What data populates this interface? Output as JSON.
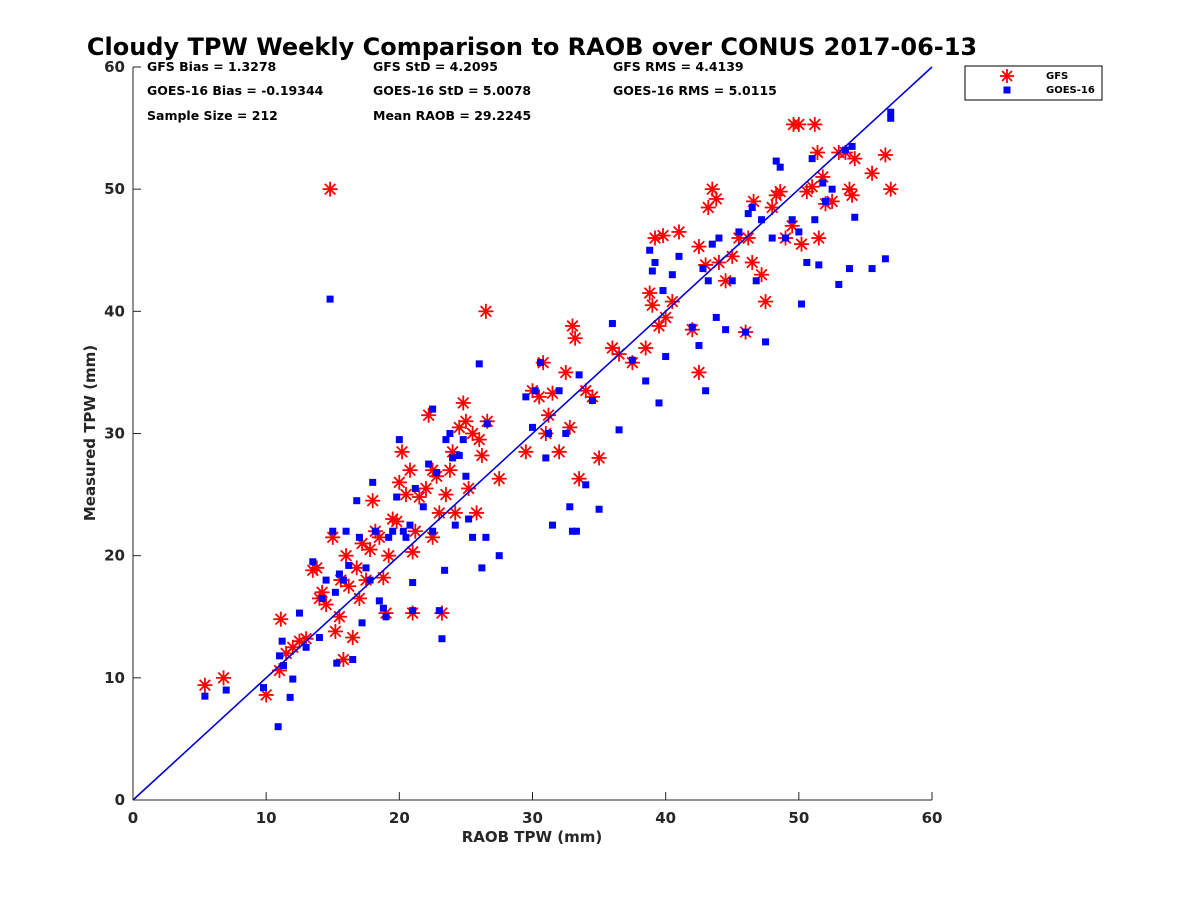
{
  "chart_data": {
    "type": "scatter",
    "title": "Cloudy TPW Weekly Comparison to RAOB over CONUS 2017-06-13",
    "xlabel": "RAOB TPW (mm)",
    "ylabel": "Measured TPW (mm)",
    "xlim": [
      0,
      60
    ],
    "ylim": [
      0,
      60
    ],
    "xticks": [
      "0",
      "10",
      "20",
      "30",
      "40",
      "50",
      "60"
    ],
    "yticks": [
      "0",
      "10",
      "20",
      "30",
      "40",
      "50",
      "60"
    ],
    "grid": false,
    "legend": "outside-top-right",
    "reference_line": {
      "from": [
        0,
        0
      ],
      "to": [
        60,
        60
      ],
      "color": "#0000dd"
    },
    "stats": {
      "gfs_bias": "GFS Bias = 1.3278",
      "gfs_std": "GFS StD = 4.2095",
      "gfs_rms": "GFS RMS = 4.4139",
      "goes_bias": "GOES-16 Bias = -0.19344",
      "goes_std": "GOES-16 StD = 5.0078",
      "goes_rms": "GOES-16 RMS = 5.0115",
      "sample_size": "Sample Size = 212",
      "mean_raob": "Mean RAOB = 29.2245"
    },
    "series": [
      {
        "name": "GFS",
        "marker": "asterisk",
        "color": "#ff0000",
        "points": [
          [
            5.4,
            9.4
          ],
          [
            6.8,
            10.0
          ],
          [
            10.0,
            8.6
          ],
          [
            11.0,
            10.6
          ],
          [
            11.1,
            14.8
          ],
          [
            11.5,
            12.0
          ],
          [
            12.0,
            12.5
          ],
          [
            12.5,
            13.0
          ],
          [
            13.0,
            13.2
          ],
          [
            13.5,
            18.8
          ],
          [
            13.8,
            19.0
          ],
          [
            14.0,
            16.5
          ],
          [
            14.2,
            17.0
          ],
          [
            14.5,
            16.0
          ],
          [
            14.8,
            50.0
          ],
          [
            15.0,
            21.5
          ],
          [
            15.2,
            13.8
          ],
          [
            15.5,
            15.0
          ],
          [
            15.6,
            18.0
          ],
          [
            15.8,
            11.5
          ],
          [
            16.0,
            20.0
          ],
          [
            16.2,
            17.5
          ],
          [
            16.5,
            13.3
          ],
          [
            16.8,
            19.0
          ],
          [
            17.0,
            16.5
          ],
          [
            17.2,
            21.0
          ],
          [
            17.5,
            18.0
          ],
          [
            17.8,
            20.5
          ],
          [
            18.0,
            24.5
          ],
          [
            18.2,
            22.0
          ],
          [
            18.5,
            21.5
          ],
          [
            18.8,
            18.2
          ],
          [
            19.0,
            15.3
          ],
          [
            19.2,
            20.0
          ],
          [
            19.5,
            23.0
          ],
          [
            19.8,
            22.8
          ],
          [
            20.0,
            26.0
          ],
          [
            20.2,
            28.5
          ],
          [
            20.5,
            25.0
          ],
          [
            20.8,
            27.0
          ],
          [
            21.0,
            20.3
          ],
          [
            21.0,
            15.3
          ],
          [
            21.2,
            22.0
          ],
          [
            21.5,
            24.8
          ],
          [
            22.0,
            25.5
          ],
          [
            22.2,
            31.5
          ],
          [
            22.5,
            27.0
          ],
          [
            22.5,
            21.5
          ],
          [
            22.8,
            26.5
          ],
          [
            23.0,
            23.5
          ],
          [
            23.2,
            15.3
          ],
          [
            23.5,
            25.0
          ],
          [
            23.8,
            27.0
          ],
          [
            24.0,
            28.5
          ],
          [
            24.2,
            23.5
          ],
          [
            24.5,
            30.5
          ],
          [
            24.8,
            32.5
          ],
          [
            25.0,
            31.0
          ],
          [
            25.2,
            25.5
          ],
          [
            25.5,
            30.0
          ],
          [
            25.8,
            23.5
          ],
          [
            26.0,
            29.5
          ],
          [
            26.2,
            28.2
          ],
          [
            26.5,
            40.0
          ],
          [
            26.6,
            31.0
          ],
          [
            27.5,
            26.3
          ],
          [
            29.5,
            28.5
          ],
          [
            30.0,
            33.5
          ],
          [
            30.5,
            33.0
          ],
          [
            30.8,
            35.8
          ],
          [
            31.0,
            30.0
          ],
          [
            31.2,
            31.5
          ],
          [
            31.5,
            33.3
          ],
          [
            32.0,
            28.5
          ],
          [
            32.5,
            35.0
          ],
          [
            32.8,
            30.5
          ],
          [
            33.0,
            38.8
          ],
          [
            33.2,
            37.8
          ],
          [
            33.5,
            26.3
          ],
          [
            34.0,
            33.5
          ],
          [
            34.5,
            33.0
          ],
          [
            35.0,
            28.0
          ],
          [
            36.0,
            37.0
          ],
          [
            36.5,
            36.5
          ],
          [
            37.5,
            35.8
          ],
          [
            38.5,
            37.0
          ],
          [
            38.8,
            41.5
          ],
          [
            39.0,
            40.5
          ],
          [
            39.2,
            46.0
          ],
          [
            39.5,
            38.8
          ],
          [
            39.8,
            46.2
          ],
          [
            40.0,
            39.5
          ],
          [
            40.5,
            40.8
          ],
          [
            41.0,
            46.5
          ],
          [
            42.0,
            38.5
          ],
          [
            42.5,
            45.3
          ],
          [
            42.5,
            35.0
          ],
          [
            43.0,
            43.8
          ],
          [
            43.2,
            48.5
          ],
          [
            43.5,
            50.0
          ],
          [
            43.8,
            49.2
          ],
          [
            44.0,
            44.0
          ],
          [
            44.5,
            42.5
          ],
          [
            45.0,
            44.5
          ],
          [
            45.5,
            46.0
          ],
          [
            46.0,
            38.3
          ],
          [
            46.2,
            46.0
          ],
          [
            46.5,
            44.0
          ],
          [
            46.6,
            49.0
          ],
          [
            47.2,
            43.0
          ],
          [
            47.5,
            40.8
          ],
          [
            48.0,
            48.5
          ],
          [
            48.3,
            49.5
          ],
          [
            48.6,
            49.8
          ],
          [
            49.0,
            46.0
          ],
          [
            49.5,
            47.0
          ],
          [
            49.6,
            55.3
          ],
          [
            50.0,
            55.3
          ],
          [
            50.2,
            45.5
          ],
          [
            50.6,
            49.8
          ],
          [
            51.0,
            50.2
          ],
          [
            51.2,
            55.3
          ],
          [
            51.4,
            53.0
          ],
          [
            51.5,
            46.0
          ],
          [
            51.8,
            51.0
          ],
          [
            52.0,
            48.8
          ],
          [
            52.5,
            49.0
          ],
          [
            53.0,
            53.0
          ],
          [
            53.5,
            53.0
          ],
          [
            53.8,
            50.0
          ],
          [
            54.0,
            49.5
          ],
          [
            54.2,
            52.5
          ],
          [
            55.5,
            51.3
          ],
          [
            56.5,
            52.8
          ],
          [
            56.9,
            50.0
          ]
        ]
      },
      {
        "name": "GOES-16",
        "marker": "square",
        "color": "#0000ff",
        "points": [
          [
            5.4,
            8.5
          ],
          [
            7.0,
            9.0
          ],
          [
            9.8,
            9.2
          ],
          [
            10.9,
            6.0
          ],
          [
            11.0,
            11.8
          ],
          [
            11.2,
            13.0
          ],
          [
            11.3,
            11.0
          ],
          [
            11.8,
            8.4
          ],
          [
            12.0,
            9.9
          ],
          [
            12.5,
            15.3
          ],
          [
            13.0,
            12.5
          ],
          [
            13.5,
            19.5
          ],
          [
            14.0,
            13.3
          ],
          [
            14.2,
            16.5
          ],
          [
            14.5,
            18.0
          ],
          [
            14.8,
            41.0
          ],
          [
            15.0,
            22.0
          ],
          [
            15.2,
            17.0
          ],
          [
            15.3,
            11.2
          ],
          [
            15.5,
            18.5
          ],
          [
            15.8,
            18.0
          ],
          [
            16.0,
            22.0
          ],
          [
            16.2,
            19.2
          ],
          [
            16.5,
            11.5
          ],
          [
            16.8,
            24.5
          ],
          [
            17.0,
            21.5
          ],
          [
            17.2,
            14.5
          ],
          [
            17.5,
            19.0
          ],
          [
            17.8,
            18.0
          ],
          [
            18.0,
            26.0
          ],
          [
            18.2,
            22.0
          ],
          [
            18.5,
            16.3
          ],
          [
            18.8,
            15.7
          ],
          [
            19.0,
            15.0
          ],
          [
            19.2,
            21.5
          ],
          [
            19.5,
            22.0
          ],
          [
            19.8,
            24.8
          ],
          [
            20.0,
            29.5
          ],
          [
            20.3,
            22.0
          ],
          [
            20.5,
            21.5
          ],
          [
            20.8,
            22.5
          ],
          [
            21.0,
            17.8
          ],
          [
            21.0,
            15.5
          ],
          [
            21.2,
            25.5
          ],
          [
            21.8,
            24.0
          ],
          [
            22.2,
            27.5
          ],
          [
            22.5,
            32.0
          ],
          [
            22.5,
            22.0
          ],
          [
            22.8,
            26.8
          ],
          [
            23.0,
            15.5
          ],
          [
            23.2,
            13.2
          ],
          [
            23.4,
            18.8
          ],
          [
            23.5,
            29.5
          ],
          [
            23.8,
            30.0
          ],
          [
            24.0,
            28.0
          ],
          [
            24.2,
            22.5
          ],
          [
            24.5,
            28.2
          ],
          [
            24.8,
            29.5
          ],
          [
            25.0,
            26.5
          ],
          [
            25.2,
            23.0
          ],
          [
            25.5,
            21.5
          ],
          [
            26.0,
            35.7
          ],
          [
            26.2,
            19.0
          ],
          [
            26.5,
            21.5
          ],
          [
            26.6,
            30.8
          ],
          [
            27.5,
            20.0
          ],
          [
            29.5,
            33.0
          ],
          [
            30.0,
            30.5
          ],
          [
            30.2,
            33.5
          ],
          [
            30.6,
            35.8
          ],
          [
            31.0,
            28.0
          ],
          [
            31.2,
            30.0
          ],
          [
            31.5,
            22.5
          ],
          [
            32.0,
            33.5
          ],
          [
            32.5,
            30.0
          ],
          [
            32.8,
            24.0
          ],
          [
            33.0,
            22.0
          ],
          [
            33.3,
            22.0
          ],
          [
            33.5,
            34.8
          ],
          [
            34.0,
            25.8
          ],
          [
            34.5,
            32.7
          ],
          [
            35.0,
            23.8
          ],
          [
            36.0,
            39.0
          ],
          [
            36.5,
            30.3
          ],
          [
            37.5,
            36.0
          ],
          [
            38.5,
            34.3
          ],
          [
            38.8,
            45.0
          ],
          [
            39.0,
            43.3
          ],
          [
            39.2,
            44.0
          ],
          [
            39.5,
            32.5
          ],
          [
            39.8,
            41.7
          ],
          [
            40.0,
            36.3
          ],
          [
            40.5,
            43.0
          ],
          [
            41.0,
            44.5
          ],
          [
            42.0,
            38.7
          ],
          [
            42.5,
            37.2
          ],
          [
            42.8,
            43.5
          ],
          [
            43.0,
            33.5
          ],
          [
            43.2,
            42.5
          ],
          [
            43.5,
            45.5
          ],
          [
            43.8,
            39.5
          ],
          [
            44.0,
            46.0
          ],
          [
            44.5,
            38.5
          ],
          [
            45.0,
            42.5
          ],
          [
            45.5,
            46.5
          ],
          [
            46.0,
            38.3
          ],
          [
            46.2,
            48.0
          ],
          [
            46.5,
            48.5
          ],
          [
            46.8,
            42.5
          ],
          [
            47.2,
            47.5
          ],
          [
            47.5,
            37.5
          ],
          [
            48.0,
            46.0
          ],
          [
            48.3,
            52.3
          ],
          [
            48.6,
            51.8
          ],
          [
            49.0,
            46.0
          ],
          [
            49.5,
            47.5
          ],
          [
            50.0,
            46.5
          ],
          [
            50.2,
            40.6
          ],
          [
            50.6,
            44.0
          ],
          [
            51.0,
            52.5
          ],
          [
            51.2,
            47.5
          ],
          [
            51.5,
            43.8
          ],
          [
            51.8,
            50.5
          ],
          [
            52.0,
            49.0
          ],
          [
            52.5,
            50.0
          ],
          [
            53.0,
            42.2
          ],
          [
            53.5,
            53.2
          ],
          [
            53.8,
            43.5
          ],
          [
            54.0,
            53.5
          ],
          [
            54.2,
            47.7
          ],
          [
            55.5,
            43.5
          ],
          [
            56.5,
            44.3
          ],
          [
            56.9,
            56.3
          ],
          [
            56.9,
            55.8
          ]
        ]
      }
    ]
  }
}
